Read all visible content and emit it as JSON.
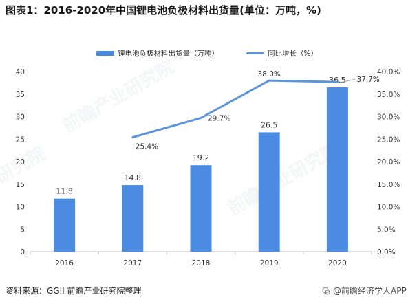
{
  "title": "图表1：2016-2020年中国锂电池负极材料出货量(单位：万吨，%)",
  "legend": {
    "bar_label": "锂电池负极材料出货量（万吨）",
    "line_label": "同比增长（%）"
  },
  "footer": {
    "source": "资料来源：GGII 前瞻产业研究院整理",
    "brand": "@前瞻经济学人APP"
  },
  "watermarks": [
    "前瞻产业研究院",
    "前瞻产业研究院",
    "研究院"
  ],
  "colors": {
    "bar": "#4a8ae0",
    "line": "#5d95dd",
    "axis": "#bfbfbf"
  },
  "chart_data": {
    "type": "bar",
    "categories": [
      "2016",
      "2017",
      "2018",
      "2019",
      "2020"
    ],
    "series": [
      {
        "name": "锂电池负极材料出货量（万吨）",
        "type": "bar",
        "axis": "left",
        "values": [
          11.8,
          14.8,
          19.2,
          26.5,
          36.5
        ],
        "labels": [
          "11.8",
          "14.8",
          "19.2",
          "26.5",
          "36.5"
        ]
      },
      {
        "name": "同比增长（%）",
        "type": "line",
        "axis": "right",
        "values": [
          null,
          25.4,
          29.7,
          38.0,
          37.7
        ],
        "labels": [
          "",
          "25.4%",
          "29.7%",
          "38.0%",
          "37.7%"
        ]
      }
    ],
    "left_axis": {
      "min": 0,
      "max": 40,
      "ticks": [
        "0",
        "5",
        "10",
        "15",
        "20",
        "25",
        "30",
        "35",
        "40"
      ]
    },
    "right_axis": {
      "min": 0,
      "max": 40,
      "ticks": [
        "0.0%",
        "5.0%",
        "10.0%",
        "15.0%",
        "20.0%",
        "25.0%",
        "30.0%",
        "35.0%",
        "40.0%"
      ]
    },
    "legend_position": "top",
    "grid": false
  }
}
